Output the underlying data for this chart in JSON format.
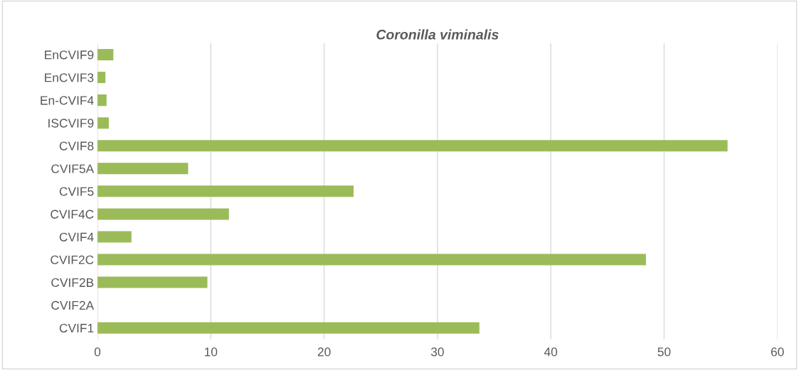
{
  "chart_data": {
    "type": "bar",
    "orientation": "horizontal",
    "title": "Coronilla viminalis",
    "categories": [
      "EnCVIF9",
      "EnCVIF3",
      "En-CVIF4",
      "ISCVIF9",
      "CVIF8",
      "CVIF5A",
      "CVIF5",
      "CVIF4C",
      "CVIF4",
      "CVIF2C",
      "CVIF2B",
      "CVIF2A",
      "CVIF1"
    ],
    "values": [
      1.4,
      0.7,
      0.8,
      1.0,
      55.6,
      8.0,
      22.6,
      11.6,
      3.0,
      48.4,
      9.7,
      0,
      33.7
    ],
    "color": "#9bbb59",
    "xlim": [
      0,
      60
    ],
    "xticks": [
      0,
      10,
      20,
      30,
      40,
      50,
      60
    ],
    "grid": "x"
  }
}
